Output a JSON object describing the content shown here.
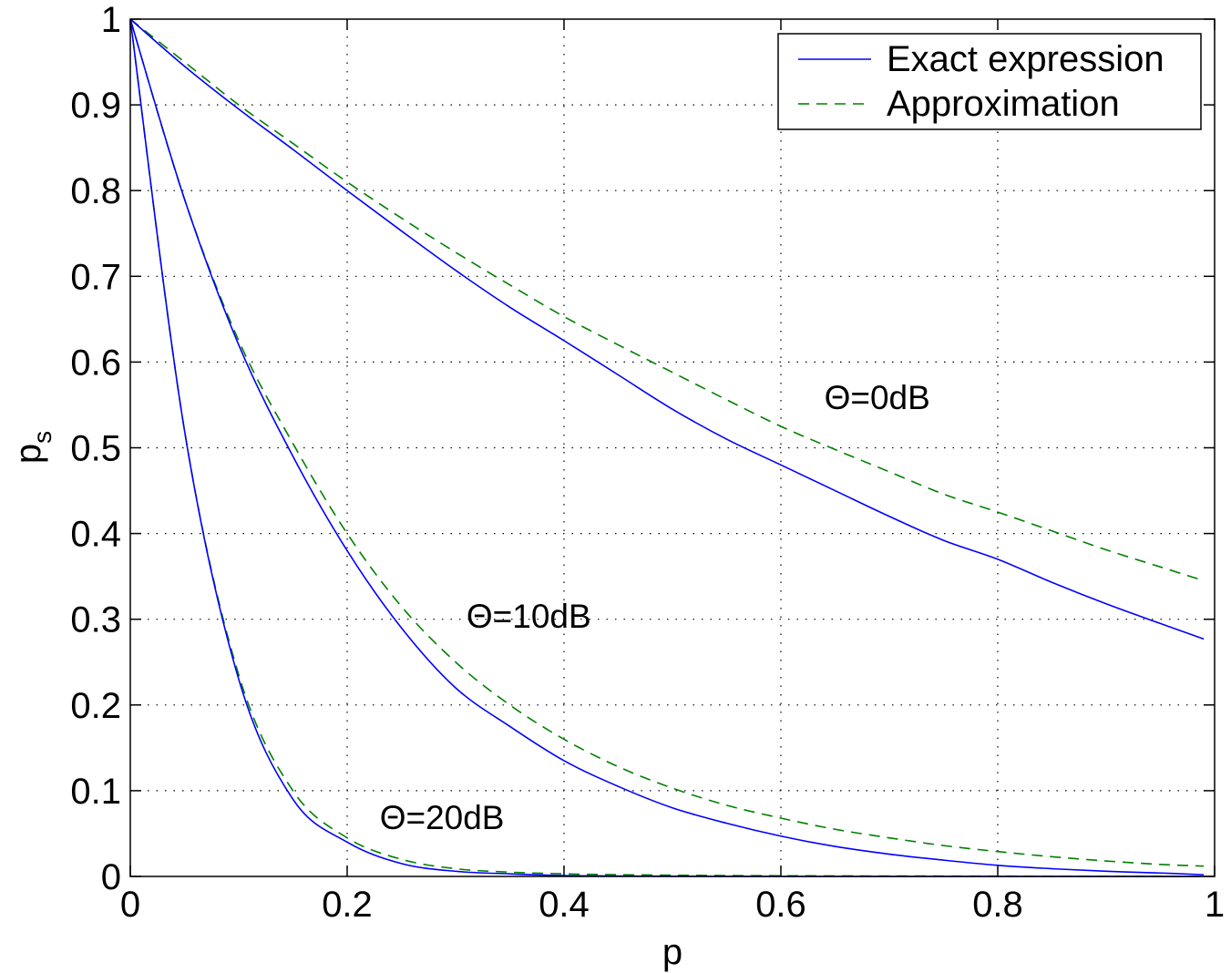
{
  "chart_data": {
    "type": "line",
    "xlabel": "p",
    "ylabel_main": "p",
    "ylabel_sub": "s",
    "xlim": [
      0,
      1
    ],
    "ylim": [
      0,
      1
    ],
    "grid": true,
    "legend_position": "top-right",
    "x_ticks": [
      "0",
      "0.2",
      "0.4",
      "0.6",
      "0.8",
      "1"
    ],
    "y_ticks": [
      "0",
      "0.1",
      "0.2",
      "0.3",
      "0.4",
      "0.5",
      "0.6",
      "0.7",
      "0.8",
      "0.9",
      "1"
    ],
    "legend": [
      {
        "label": "Exact expression",
        "style": "solid",
        "color": "#0000ff"
      },
      {
        "label": "Approximation",
        "style": "dashed",
        "color": "#008000"
      }
    ],
    "annotations": [
      {
        "text": "Θ=0dB",
        "x": 0.64,
        "y": 0.545
      },
      {
        "text": "Θ=10dB",
        "x": 0.31,
        "y": 0.29
      },
      {
        "text": "Θ=20dB",
        "x": 0.23,
        "y": 0.055
      }
    ],
    "x": [
      0,
      0.05,
      0.1,
      0.15,
      0.2,
      0.25,
      0.3,
      0.35,
      0.4,
      0.45,
      0.5,
      0.55,
      0.6,
      0.65,
      0.7,
      0.75,
      0.8,
      0.85,
      0.9,
      0.95,
      0.99
    ],
    "series": [
      {
        "name": "Exact expression",
        "group": "Θ=0dB",
        "style": "solid",
        "color": "#0000ff",
        "values": [
          1,
          0.945,
          0.895,
          0.848,
          0.8,
          0.753,
          0.707,
          0.664,
          0.625,
          0.585,
          0.545,
          0.51,
          0.48,
          0.45,
          0.42,
          0.392,
          0.37,
          0.343,
          0.318,
          0.295,
          0.277
        ]
      },
      {
        "name": "Approximation",
        "group": "Θ=0dB",
        "style": "dashed",
        "color": "#008000",
        "values": [
          1,
          0.95,
          0.9,
          0.855,
          0.81,
          0.768,
          0.728,
          0.69,
          0.653,
          0.62,
          0.588,
          0.556,
          0.525,
          0.498,
          0.472,
          0.446,
          0.425,
          0.403,
          0.381,
          0.361,
          0.345
        ]
      },
      {
        "name": "Exact expression",
        "group": "Θ=10dB",
        "style": "solid",
        "color": "#0000ff",
        "values": [
          1,
          0.79,
          0.62,
          0.49,
          0.38,
          0.29,
          0.22,
          0.175,
          0.135,
          0.105,
          0.08,
          0.062,
          0.047,
          0.035,
          0.026,
          0.019,
          0.013,
          0.009,
          0.006,
          0.004,
          0.002
        ]
      },
      {
        "name": "Approximation",
        "group": "Θ=10dB",
        "style": "dashed",
        "color": "#008000",
        "values": [
          1,
          0.79,
          0.625,
          0.505,
          0.4,
          0.315,
          0.25,
          0.2,
          0.16,
          0.128,
          0.103,
          0.083,
          0.068,
          0.055,
          0.045,
          0.036,
          0.029,
          0.023,
          0.018,
          0.014,
          0.012
        ]
      },
      {
        "name": "Exact expression",
        "group": "Θ=20dB",
        "style": "solid",
        "color": "#0000ff",
        "values": [
          1,
          0.52,
          0.23,
          0.09,
          0.04,
          0.015,
          0.006,
          0.003,
          0.001,
          0.0005,
          0.0002,
          0.0001,
          0,
          0,
          0,
          0,
          0,
          0,
          0,
          0,
          0
        ]
      },
      {
        "name": "Approximation",
        "group": "Θ=20dB",
        "style": "dashed",
        "color": "#008000",
        "values": [
          1,
          0.52,
          0.235,
          0.1,
          0.045,
          0.02,
          0.009,
          0.005,
          0.003,
          0.002,
          0.0015,
          0.001,
          0.0008,
          0.0006,
          0.0005,
          0.0004,
          0.0003,
          0.0002,
          0.0002,
          0.0001,
          0.0001
        ]
      }
    ]
  }
}
